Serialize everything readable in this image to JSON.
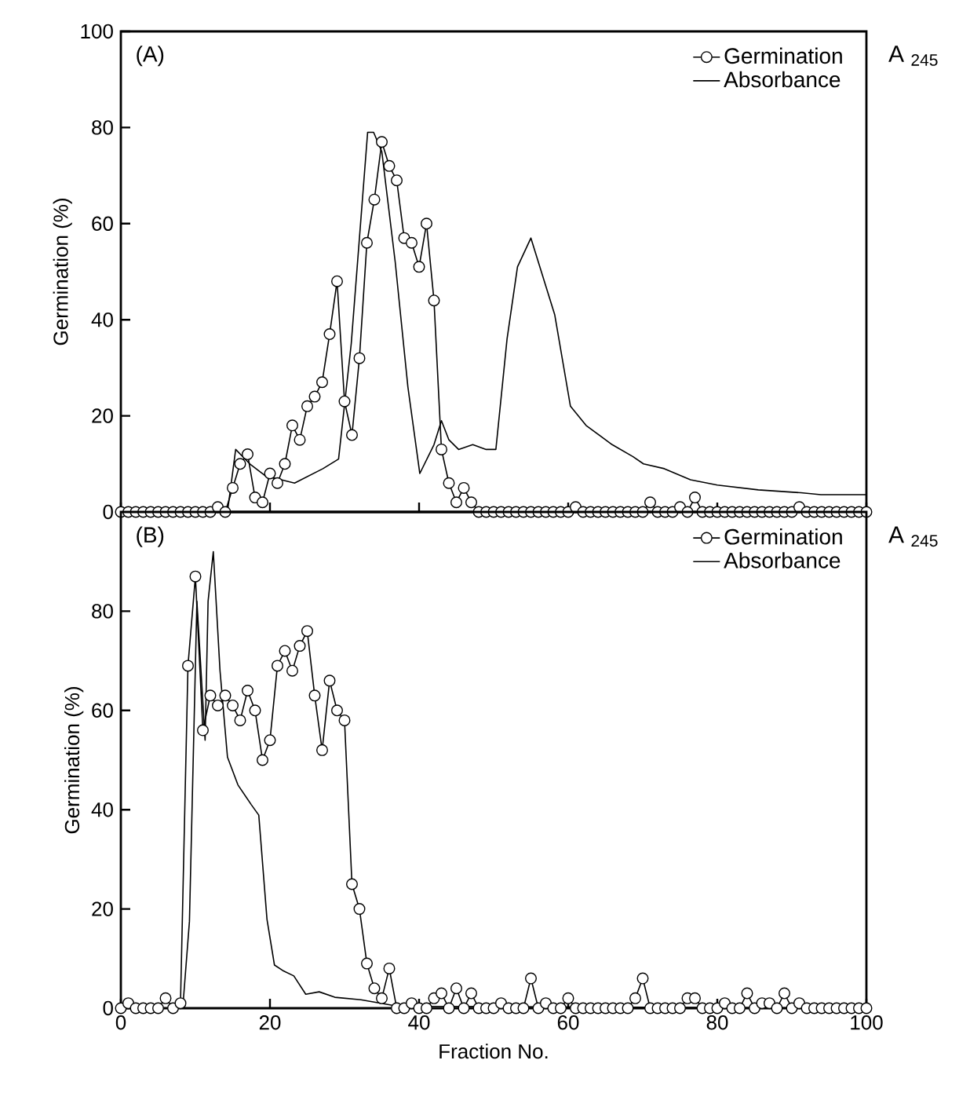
{
  "chart_data": [
    {
      "type": "line",
      "ylabel": "Germination (%)",
      "y2label": "A $_{245}$",
      "annotations": [
        "(A)"
      ],
      "x": [
        0,
        1,
        2,
        3,
        4,
        5,
        6,
        7,
        8,
        9,
        10,
        11,
        12,
        13,
        14,
        15,
        16,
        17,
        18,
        19,
        20,
        21,
        22,
        23,
        24,
        25,
        26,
        27,
        28,
        29,
        30,
        31,
        32,
        33,
        34,
        35,
        36,
        37,
        38,
        39,
        40,
        41,
        42,
        43,
        44,
        45,
        46,
        47,
        48,
        49,
        50,
        51,
        52,
        53,
        54,
        55,
        56,
        57,
        58,
        59,
        60,
        61,
        62,
        63,
        64,
        65,
        66,
        67,
        68,
        69,
        70,
        71,
        72,
        73,
        74,
        75,
        76,
        77,
        78,
        79,
        80,
        81,
        82,
        83,
        84,
        85,
        86,
        87,
        88,
        89,
        90,
        91,
        92,
        93,
        94,
        95,
        96,
        97,
        98,
        99,
        100
      ],
      "series": [
        {
          "name": "Germination",
          "color": "#000000",
          "marker": "circle",
          "values": [
            0,
            0,
            0,
            0,
            0,
            0,
            0,
            0,
            0,
            0,
            0,
            0,
            0,
            1,
            0,
            5,
            10,
            12,
            3,
            2,
            8,
            6,
            10,
            18,
            15,
            22,
            24,
            27,
            37,
            48,
            23,
            16,
            32,
            56,
            65,
            77,
            72,
            69,
            57,
            56,
            51,
            60,
            44,
            13,
            6,
            2,
            5,
            2,
            0,
            0,
            0,
            0,
            0,
            0,
            0,
            0,
            0,
            0,
            0,
            0,
            0,
            1,
            0,
            0,
            0,
            0,
            0,
            0,
            0,
            0,
            0,
            2,
            0,
            0,
            0,
            1,
            0,
            3,
            0,
            0,
            0,
            0,
            0,
            0,
            0,
            0,
            0,
            0,
            0,
            0,
            0,
            1,
            0,
            0,
            0,
            0,
            0,
            0,
            0,
            0,
            0
          ]
        },
        {
          "name": "Absorbance",
          "color": "#000000",
          "marker": "none",
          "x": [
            0,
            14.3,
            15.4,
            17.3,
            19.4,
            23.3,
            27.1,
            29.2,
            30.9,
            33.1,
            33.9,
            35,
            36.8,
            38.5,
            40.1,
            42,
            43,
            44,
            45.3,
            47.2,
            49,
            50.3,
            51.8,
            53.2,
            55,
            58.2,
            60.3,
            62.4,
            65.9,
            68.7,
            70.1,
            72.9,
            76.4,
            80,
            85.5,
            91.2,
            93.9,
            100
          ],
          "values": [
            0,
            0,
            13,
            10,
            7.5,
            6,
            9,
            11,
            35,
            79,
            79,
            75,
            52,
            26,
            8,
            14,
            19,
            15,
            13,
            14,
            13,
            13,
            36,
            51,
            57,
            41,
            22,
            18,
            14,
            11.5,
            10,
            9,
            6.7,
            5.6,
            4.6,
            4,
            3.6,
            3.6
          ]
        }
      ],
      "xlim": [
        0,
        100
      ],
      "xticks": [
        0,
        20,
        40,
        60,
        80,
        100
      ],
      "ylim": [
        0,
        100
      ],
      "yticks": [
        0,
        20,
        40,
        60,
        80,
        100
      ],
      "tick_labels": "y",
      "legend": "top right",
      "line_style": "solid"
    },
    {
      "type": "line",
      "xlabel": "Fraction No.",
      "ylabel": "Germination (%)",
      "y2label": "A $_{245}$",
      "annotations": [
        "(B)"
      ],
      "x": [
        0,
        1,
        2,
        3,
        4,
        5,
        6,
        7,
        8,
        9,
        10,
        11,
        12,
        13,
        14,
        15,
        16,
        17,
        18,
        19,
        20,
        21,
        22,
        23,
        24,
        25,
        26,
        27,
        28,
        29,
        30,
        31,
        32,
        33,
        34,
        35,
        36,
        37,
        38,
        39,
        40,
        41,
        42,
        43,
        44,
        45,
        46,
        47,
        48,
        49,
        50,
        51,
        52,
        53,
        54,
        55,
        56,
        57,
        58,
        59,
        60,
        61,
        62,
        63,
        64,
        65,
        66,
        67,
        68,
        69,
        70,
        71,
        72,
        73,
        74,
        75,
        76,
        77,
        78,
        79,
        80,
        81,
        82,
        83,
        84,
        85,
        86,
        87,
        88,
        89,
        90,
        91,
        92,
        93,
        94,
        95,
        96,
        97,
        98,
        99,
        100
      ],
      "series": [
        {
          "name": "Germination",
          "color": "#000000",
          "marker": "circle",
          "values": [
            0,
            1,
            0,
            0,
            0,
            0,
            2,
            0,
            1,
            69,
            87,
            56,
            63,
            61,
            63,
            61,
            58,
            64,
            60,
            50,
            54,
            69,
            72,
            68,
            73,
            76,
            63,
            52,
            66,
            60,
            58,
            25,
            20,
            9,
            4,
            2,
            8,
            0,
            0,
            1,
            0,
            0,
            2,
            3,
            0,
            4,
            0,
            3,
            0,
            0,
            0,
            1,
            0,
            0,
            0,
            6,
            0,
            1,
            0,
            0,
            2,
            0,
            0,
            0,
            0,
            0,
            0,
            0,
            0,
            2,
            6,
            0,
            0,
            0,
            0,
            0,
            2,
            2,
            0,
            0,
            0,
            1,
            0,
            0,
            3,
            0,
            1,
            1,
            0,
            3,
            0,
            1,
            0,
            0,
            0,
            0,
            0,
            0,
            0,
            0,
            0
          ]
        },
        {
          "name": "Absorbance",
          "color": "#000000",
          "marker": "none",
          "x": [
            0,
            8.3,
            9.2,
            10.2,
            11.3,
            11.7,
            12.4,
            13.3,
            14.3,
            15.7,
            17.5,
            18.5,
            19.6,
            20.6,
            21.7,
            23.2,
            24.8,
            26.6,
            28.7,
            32.2,
            36.4,
            40.6,
            100
          ],
          "values": [
            0,
            0,
            17.5,
            82,
            54,
            82,
            92,
            68,
            50.6,
            45,
            41,
            38.9,
            17.9,
            8.7,
            7.6,
            6.5,
            2.8,
            3.3,
            2.2,
            1.7,
            0.6,
            0.4,
            0
          ]
        }
      ],
      "xlim": [
        0,
        100
      ],
      "xticks": [
        0,
        20,
        40,
        60,
        80,
        100
      ],
      "ylim": [
        0,
        100
      ],
      "yticks": [
        0,
        20,
        40,
        60,
        80
      ],
      "legend": "top right",
      "line_style": "solid"
    }
  ]
}
